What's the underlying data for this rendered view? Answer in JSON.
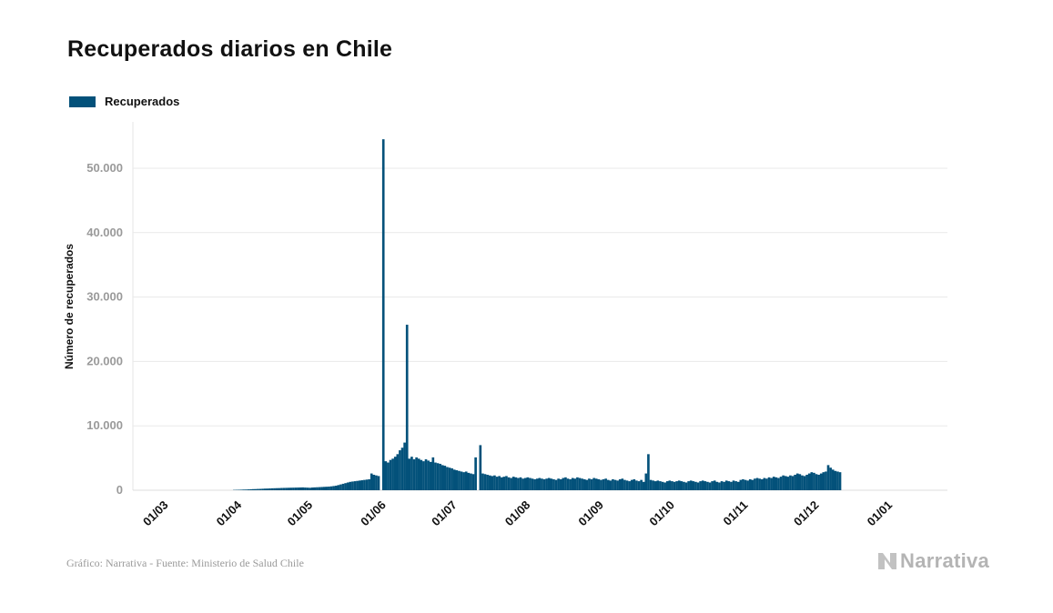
{
  "title": "Recuperados diarios en Chile",
  "footer": "Gráfico: Narrativa - Fuente: Ministerio de Salud Chile",
  "brand": "Narrativa",
  "colors": {
    "bar": "#03517a",
    "grid": "#e9e9e9",
    "tick_label": "#9a9a9a"
  },
  "chart_data": {
    "type": "bar",
    "title": "Recuperados diarios en Chile",
    "ylabel": "Número de recuperados",
    "xlabel": "",
    "ylim": [
      0,
      57000
    ],
    "yticks": [
      0,
      10000,
      20000,
      30000,
      40000,
      50000
    ],
    "ytick_labels": [
      "0",
      "10.000",
      "20.000",
      "30.000",
      "40.000",
      "50.000"
    ],
    "xtick_labels": [
      "01/03",
      "01/04",
      "01/05",
      "01/06",
      "01/07",
      "01/08",
      "01/09",
      "01/10",
      "01/11",
      "01/12",
      "01/01"
    ],
    "xtick_day_index": [
      0,
      31,
      61,
      92,
      122,
      153,
      184,
      214,
      245,
      275,
      306
    ],
    "grid": true,
    "legend": "top-left",
    "start_date": "2020-03-01",
    "series": [
      {
        "name": "Recuperados",
        "note": "daily values starting 01/03 (one per day)",
        "values": [
          0,
          0,
          0,
          0,
          0,
          0,
          0,
          0,
          0,
          0,
          0,
          0,
          0,
          0,
          0,
          0,
          0,
          0,
          0,
          0,
          0,
          0,
          0,
          0,
          0,
          0,
          0,
          0,
          0,
          0,
          0,
          50,
          60,
          70,
          80,
          100,
          110,
          130,
          150,
          170,
          180,
          200,
          210,
          230,
          250,
          260,
          280,
          300,
          310,
          320,
          330,
          350,
          360,
          370,
          380,
          390,
          400,
          410,
          420,
          430,
          440,
          420,
          400,
          380,
          420,
          440,
          460,
          480,
          500,
          520,
          540,
          560,
          600,
          650,
          700,
          800,
          900,
          1000,
          1100,
          1200,
          1300,
          1350,
          1400,
          1450,
          1500,
          1550,
          1600,
          1650,
          1700,
          2600,
          2400,
          2300,
          2200,
          0,
          54500,
          4500,
          4300,
          4700,
          4900,
          5200,
          5600,
          6200,
          6600,
          7400,
          25700,
          4900,
          5200,
          4800,
          5100,
          4900,
          4700,
          4500,
          4800,
          4600,
          4400,
          5100,
          4300,
          4200,
          4100,
          3900,
          3800,
          3600,
          3500,
          3400,
          3200,
          3100,
          3000,
          2900,
          2800,
          2900,
          2700,
          2600,
          2500,
          5100,
          0,
          7000,
          2600,
          2500,
          2400,
          2300,
          2200,
          2300,
          2100,
          2200,
          2000,
          2100,
          2200,
          2000,
          1900,
          2100,
          2000,
          1900,
          2000,
          1800,
          1900,
          2000,
          1900,
          1800,
          1700,
          1800,
          1900,
          1800,
          1700,
          1800,
          1900,
          1800,
          1700,
          1600,
          1800,
          1700,
          1900,
          2000,
          1800,
          1700,
          1900,
          1800,
          2000,
          1900,
          1800,
          1700,
          1600,
          1800,
          1700,
          1900,
          1800,
          1700,
          1600,
          1700,
          1800,
          1600,
          1500,
          1700,
          1600,
          1500,
          1700,
          1800,
          1600,
          1500,
          1400,
          1600,
          1700,
          1500,
          1400,
          1600,
          1300,
          2600,
          5600,
          1600,
          1500,
          1400,
          1500,
          1400,
          1300,
          1200,
          1400,
          1500,
          1400,
          1300,
          1400,
          1500,
          1400,
          1300,
          1200,
          1400,
          1500,
          1400,
          1300,
          1200,
          1400,
          1500,
          1400,
          1300,
          1200,
          1400,
          1500,
          1300,
          1200,
          1400,
          1300,
          1500,
          1400,
          1300,
          1500,
          1400,
          1300,
          1600,
          1700,
          1600,
          1500,
          1700,
          1600,
          1800,
          1900,
          1800,
          1700,
          1900,
          1800,
          2000,
          1900,
          2100,
          2000,
          1900,
          2100,
          2300,
          2200,
          2100,
          2300,
          2200,
          2400,
          2600,
          2500,
          2300,
          2200,
          2400,
          2600,
          2800,
          2700,
          2500,
          2400,
          2600,
          2800,
          2900,
          3900,
          3500,
          3200,
          3000,
          2900,
          2800
        ]
      }
    ]
  }
}
